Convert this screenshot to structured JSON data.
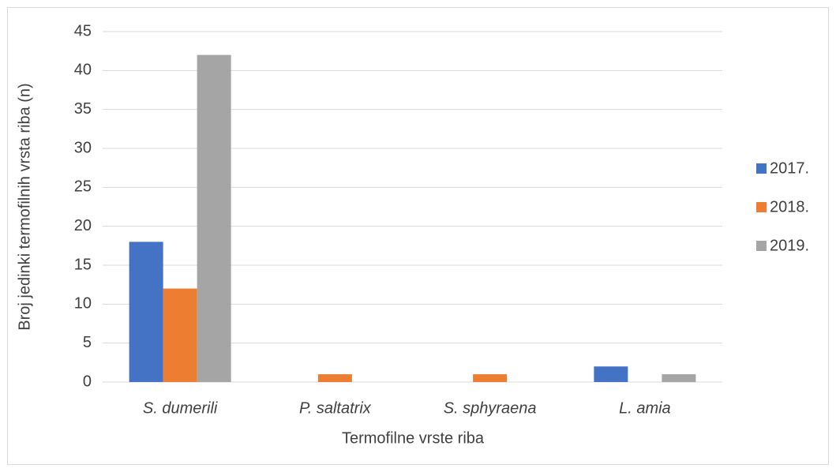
{
  "chart_data": {
    "type": "bar",
    "x_label": "Termofilne vrste riba",
    "y_label": "Broj jedinki termofilnih vrsta riba (n)",
    "categories": [
      "S. dumerili",
      "P. saltatrix",
      "S. sphyraena",
      "L. amia"
    ],
    "series": [
      {
        "name": "2017.",
        "color": "#4472c4",
        "values": [
          18,
          0,
          0,
          2
        ]
      },
      {
        "name": "2018.",
        "color": "#ed7d31",
        "values": [
          12,
          1,
          1,
          0
        ]
      },
      {
        "name": "2019.",
        "color": "#a5a5a5",
        "values": [
          42,
          0,
          0,
          1
        ]
      }
    ],
    "ylim": [
      0,
      45
    ],
    "yticks": [
      0,
      5,
      10,
      15,
      20,
      25,
      30,
      35,
      40,
      45
    ],
    "grid": true,
    "legend": "right"
  }
}
